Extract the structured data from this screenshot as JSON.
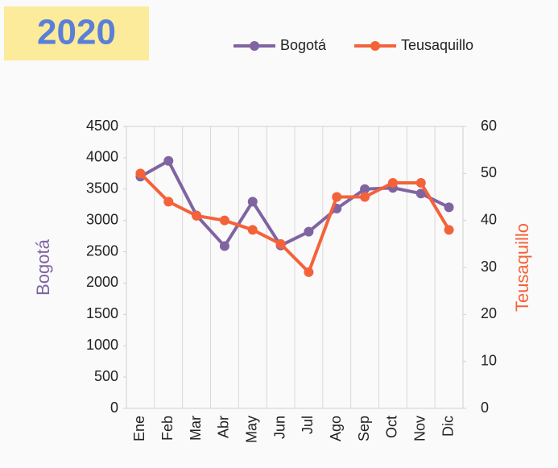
{
  "chart_data": {
    "type": "line",
    "title": "2020",
    "categories": [
      "Ene",
      "Feb",
      "Mar",
      "Abr",
      "May",
      "Jun",
      "Jul",
      "Ago",
      "Sep",
      "Oct",
      "Nov",
      "Dic"
    ],
    "series": [
      {
        "name": "Bogotá",
        "color": "#8064a2",
        "axis": "y",
        "values": [
          3700,
          3950,
          3080,
          2590,
          3300,
          2600,
          2820,
          3190,
          3500,
          3520,
          3430,
          3210
        ]
      },
      {
        "name": "Teusaquillo",
        "color": "#f4623a",
        "axis": "y2",
        "values": [
          50,
          44,
          41,
          40,
          38,
          35,
          29,
          45,
          45,
          48,
          48,
          38
        ]
      }
    ],
    "y_label": "Bogotá",
    "y2_label": "Teusaquillo",
    "ylim": [
      0,
      4500
    ],
    "yticks": [
      0,
      500,
      1000,
      1500,
      2000,
      2500,
      3000,
      3500,
      4000,
      4500
    ],
    "y2lim": [
      0,
      60
    ],
    "y2ticks": [
      0,
      10,
      20,
      30,
      40,
      50,
      60
    ],
    "grid": true
  }
}
